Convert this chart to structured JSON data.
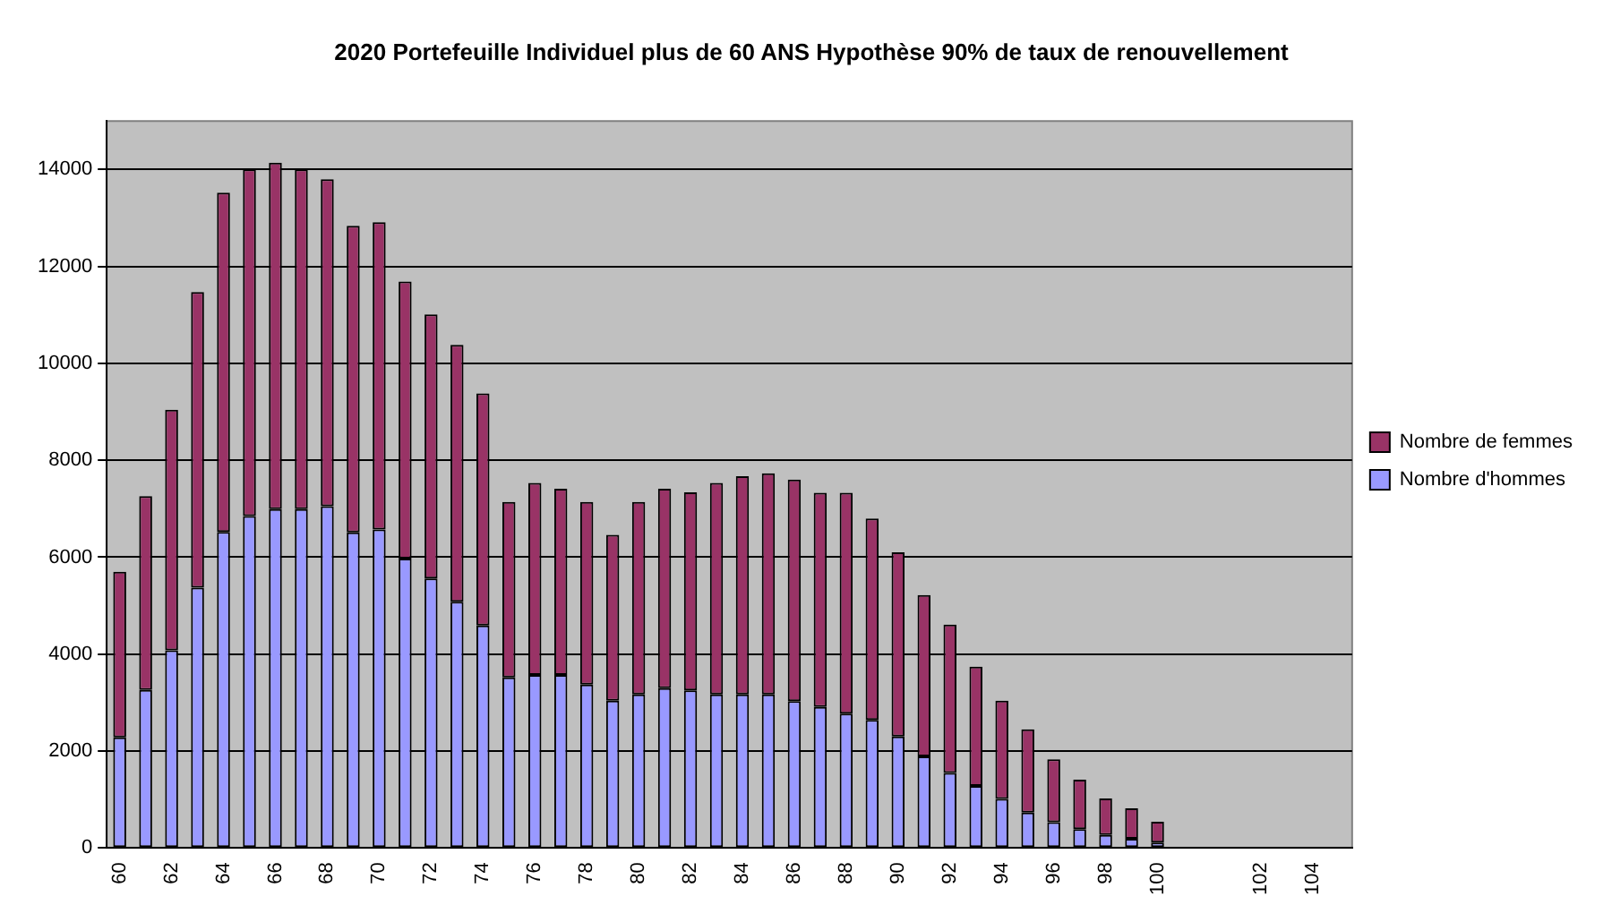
{
  "chart_data": {
    "type": "bar",
    "title": "2020 Portefeuille Individuel plus de 60 ANS Hypothèse 90% de taux de renouvellement",
    "categories": [
      "60",
      null,
      "62",
      null,
      "64",
      null,
      "66",
      null,
      "68",
      null,
      "70",
      null,
      "72",
      null,
      "74",
      null,
      "76",
      null,
      "78",
      null,
      "80",
      null,
      "82",
      null,
      "84",
      null,
      "86",
      null,
      "88",
      null,
      "90",
      null,
      "92",
      null,
      "94",
      null,
      "96",
      null,
      "98",
      null,
      "100",
      null,
      null,
      null,
      "102",
      null,
      "104",
      null
    ],
    "stacked": true,
    "series": [
      {
        "name": "Nombre d'hommes",
        "color": "#9999ff",
        "values": [
          2280,
          3260,
          4080,
          5370,
          6520,
          6850,
          6990,
          6990,
          7050,
          6510,
          6570,
          5970,
          5560,
          5080,
          4590,
          3520,
          3570,
          3570,
          3370,
          3040,
          3170,
          3300,
          3250,
          3170,
          3170,
          3170,
          3030,
          2910,
          2770,
          2640,
          2300,
          1890,
          1550,
          1280,
          1010,
          730,
          530,
          390,
          270,
          190,
          110,
          null,
          null,
          null,
          null,
          null,
          null,
          null
        ]
      },
      {
        "name": "Nombre de femmes",
        "color": "#993366",
        "values": [
          3420,
          4000,
          4960,
          6100,
          7000,
          7150,
          7150,
          7010,
          6750,
          6330,
          6340,
          5720,
          5450,
          5300,
          4790,
          3620,
          3960,
          3840,
          3770,
          3420,
          3970,
          4110,
          4090,
          4360,
          4500,
          4560,
          4570,
          4420,
          4560,
          4160,
          3800,
          3330,
          3060,
          2460,
          2030,
          1720,
          1300,
          1020,
          750,
          630,
          430,
          null,
          null,
          null,
          null,
          null,
          null,
          null
        ]
      }
    ],
    "ylim": [
      0,
      15000
    ],
    "yticks": [
      0,
      2000,
      4000,
      6000,
      8000,
      10000,
      12000,
      14000
    ],
    "grid": "y",
    "legend": "right"
  }
}
